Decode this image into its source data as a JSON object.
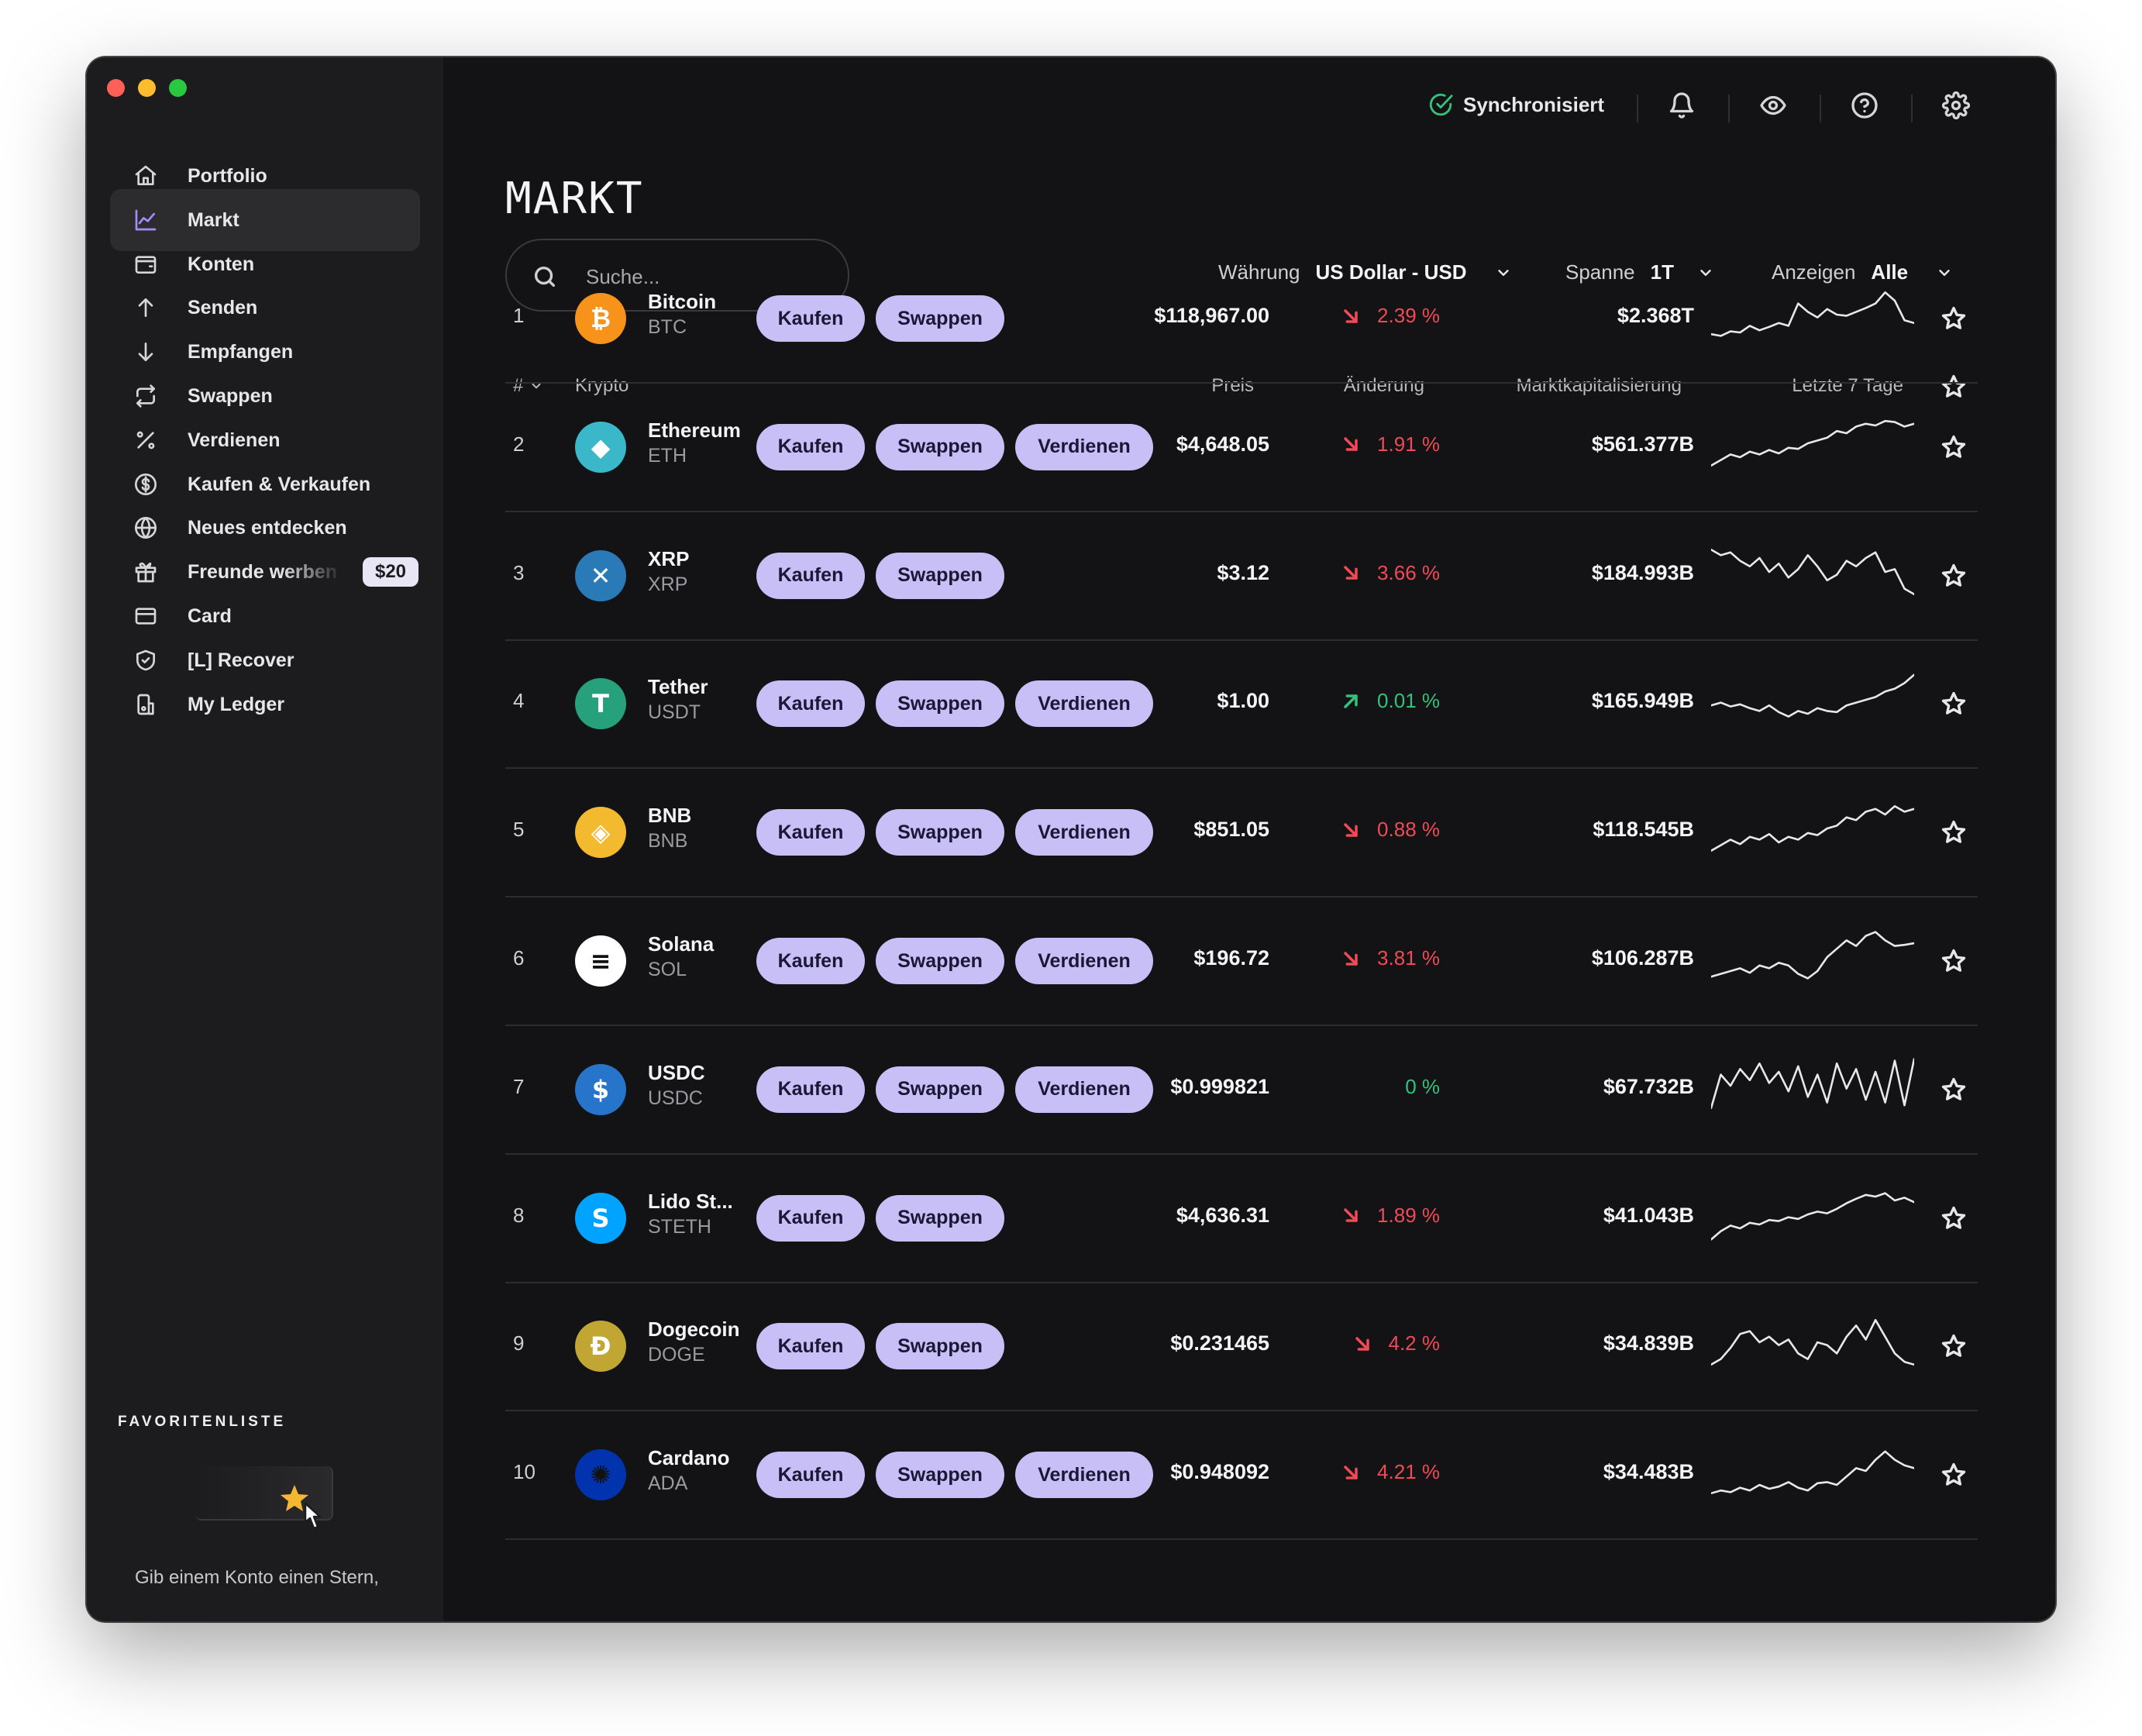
{
  "topbar": {
    "sync_status": "Synchronisiert"
  },
  "sidebar": {
    "items": [
      {
        "label": "Portfolio",
        "icon": "home-icon"
      },
      {
        "label": "Markt",
        "icon": "chart-line-icon",
        "active": true
      },
      {
        "label": "Konten",
        "icon": "wallet-icon"
      },
      {
        "label": "Senden",
        "icon": "arrow-up-icon"
      },
      {
        "label": "Empfangen",
        "icon": "arrow-down-icon"
      },
      {
        "label": "Swappen",
        "icon": "swap-icon"
      },
      {
        "label": "Verdienen",
        "icon": "percent-icon"
      },
      {
        "label": "Kaufen & Verkaufen",
        "icon": "dollar-circle-icon"
      },
      {
        "label": "Neues entdecken",
        "icon": "globe-icon"
      },
      {
        "label": "Freunde werben",
        "icon": "gift-icon",
        "badge": "$20"
      },
      {
        "label": "Card",
        "icon": "card-icon"
      },
      {
        "label": "[L] Recover",
        "icon": "shield-check-icon"
      },
      {
        "label": "My Ledger",
        "icon": "device-icon"
      }
    ],
    "favorites_title": "FAVORITENLISTE",
    "favorites_hint": "Gib einem Konto einen Stern,"
  },
  "main": {
    "title": "MARKT",
    "search_placeholder": "Suche...",
    "filters": {
      "currency_label": "Währung",
      "currency_value": "US Dollar - USD",
      "range_label": "Spanne",
      "range_value": "1T",
      "show_label": "Anzeigen",
      "show_value": "Alle"
    },
    "table": {
      "col_rank": "#",
      "col_crypto": "Krypto",
      "col_price": "Preis",
      "col_change": "Änderung",
      "col_mcap": "Marktkapitalisierung",
      "col_7d": "Letzte 7 Tage",
      "btn_buy": "Kaufen",
      "btn_swap": "Swappen",
      "btn_earn": "Verdienen",
      "rows": [
        {
          "rank": "1",
          "name": "Bitcoin",
          "ticker": "BTC",
          "price": "$118,967.00",
          "change": "2.39 %",
          "dir": "down",
          "mcap": "$2.368T",
          "earn": false,
          "color": "#f7931a",
          "spark": [
            0.15,
            0.12,
            0.2,
            0.18,
            0.3,
            0.22,
            0.28,
            0.35,
            0.3,
            0.7,
            0.55,
            0.45,
            0.6,
            0.5,
            0.48,
            0.55,
            0.62,
            0.7,
            0.9,
            0.75,
            0.4,
            0.35
          ]
        },
        {
          "rank": "2",
          "name": "Ethereum",
          "ticker": "ETH",
          "price": "$4,648.05",
          "change": "1.91 %",
          "dir": "down",
          "mcap": "$561.377B",
          "earn": true,
          "color": "#3ab7c9",
          "spark": [
            0.1,
            0.2,
            0.3,
            0.25,
            0.35,
            0.3,
            0.38,
            0.32,
            0.42,
            0.4,
            0.5,
            0.55,
            0.6,
            0.72,
            0.68,
            0.8,
            0.85,
            0.82,
            0.9,
            0.88,
            0.8,
            0.85
          ]
        },
        {
          "rank": "3",
          "name": "XRP",
          "ticker": "XRP",
          "price": "$3.12",
          "change": "3.66 %",
          "dir": "down",
          "mcap": "$184.993B",
          "earn": false,
          "color": "#2a7ab8",
          "spark": [
            0.9,
            0.8,
            0.85,
            0.7,
            0.6,
            0.75,
            0.5,
            0.65,
            0.4,
            0.55,
            0.8,
            0.6,
            0.35,
            0.45,
            0.7,
            0.6,
            0.75,
            0.85,
            0.5,
            0.55,
            0.2,
            0.1
          ]
        },
        {
          "rank": "4",
          "name": "Tether",
          "ticker": "USDT",
          "price": "$1.00",
          "change": "0.01 %",
          "dir": "up",
          "mcap": "$165.949B",
          "earn": true,
          "color": "#26a17b",
          "spark": [
            0.4,
            0.45,
            0.38,
            0.42,
            0.35,
            0.3,
            0.4,
            0.28,
            0.2,
            0.3,
            0.25,
            0.35,
            0.3,
            0.28,
            0.4,
            0.45,
            0.5,
            0.55,
            0.65,
            0.7,
            0.8,
            0.95
          ]
        },
        {
          "rank": "5",
          "name": "BNB",
          "ticker": "BNB",
          "price": "$851.05",
          "change": "0.88 %",
          "dir": "down",
          "mcap": "$118.545B",
          "earn": true,
          "color": "#f3ba2f",
          "spark": [
            0.1,
            0.2,
            0.3,
            0.22,
            0.35,
            0.3,
            0.4,
            0.25,
            0.35,
            0.3,
            0.42,
            0.38,
            0.5,
            0.55,
            0.7,
            0.65,
            0.8,
            0.85,
            0.75,
            0.9,
            0.8,
            0.85
          ]
        },
        {
          "rank": "6",
          "name": "Solana",
          "ticker": "SOL",
          "price": "$196.72",
          "change": "3.81 %",
          "dir": "down",
          "mcap": "$106.287B",
          "earn": true,
          "color": "#ffffff",
          "spark": [
            0.15,
            0.2,
            0.25,
            0.3,
            0.22,
            0.35,
            0.3,
            0.4,
            0.35,
            0.2,
            0.12,
            0.25,
            0.5,
            0.65,
            0.8,
            0.7,
            0.88,
            0.95,
            0.8,
            0.7,
            0.72,
            0.75
          ]
        },
        {
          "rank": "7",
          "name": "USDC",
          "ticker": "USDC",
          "price": "$0.999821",
          "change": "0 %",
          "dir": "flat",
          "mcap": "$67.732B",
          "earn": true,
          "color": "#2775ca",
          "spark": [
            0.1,
            0.7,
            0.5,
            0.8,
            0.6,
            0.9,
            0.55,
            0.75,
            0.4,
            0.85,
            0.3,
            0.7,
            0.2,
            0.9,
            0.45,
            0.8,
            0.25,
            0.75,
            0.2,
            0.95,
            0.15,
            0.98
          ]
        },
        {
          "rank": "8",
          "name": "Lido St...",
          "ticker": "STETH",
          "price": "$4,636.31",
          "change": "1.89 %",
          "dir": "down",
          "mcap": "$41.043B",
          "earn": false,
          "color": "#00a3ff",
          "spark": [
            0.05,
            0.2,
            0.3,
            0.25,
            0.35,
            0.32,
            0.4,
            0.38,
            0.45,
            0.42,
            0.5,
            0.55,
            0.52,
            0.6,
            0.7,
            0.78,
            0.85,
            0.82,
            0.88,
            0.75,
            0.8,
            0.72
          ]
        },
        {
          "rank": "9",
          "name": "Dogecoin",
          "ticker": "DOGE",
          "price": "$0.231465",
          "change": "4.2 %",
          "dir": "down",
          "mcap": "$34.839B",
          "earn": false,
          "color": "#c2a633",
          "spark": [
            0.1,
            0.2,
            0.4,
            0.65,
            0.7,
            0.5,
            0.6,
            0.45,
            0.55,
            0.3,
            0.2,
            0.5,
            0.45,
            0.3,
            0.6,
            0.8,
            0.55,
            0.9,
            0.6,
            0.3,
            0.15,
            0.1
          ]
        },
        {
          "rank": "10",
          "name": "Cardano",
          "ticker": "ADA",
          "price": "$0.948092",
          "change": "4.21 %",
          "dir": "down",
          "mcap": "$34.483B",
          "earn": true,
          "color": "#0033ad",
          "spark": [
            0.1,
            0.15,
            0.12,
            0.2,
            0.15,
            0.25,
            0.18,
            0.22,
            0.3,
            0.2,
            0.15,
            0.28,
            0.3,
            0.25,
            0.4,
            0.55,
            0.5,
            0.7,
            0.85,
            0.7,
            0.6,
            0.55
          ]
        }
      ]
    }
  }
}
